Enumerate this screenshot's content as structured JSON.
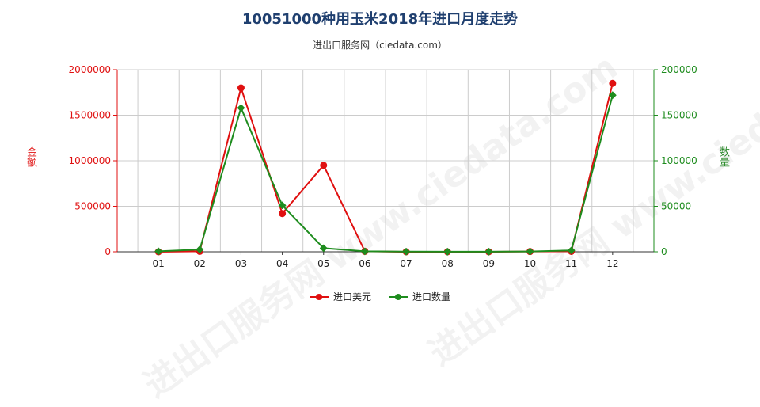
{
  "header": {
    "title": "10051000种用玉米2018年进口月度走势",
    "subtitle": "进出口服务网（ciedata.com）"
  },
  "watermark": {
    "text": "进出口服务网 www.ciedata.com"
  },
  "colors": {
    "left_series": "#e01010",
    "right_series": "#1e8c1e",
    "grid": "#cccccc"
  },
  "chart_data": {
    "type": "line",
    "categories": [
      "01",
      "02",
      "03",
      "04",
      "05",
      "06",
      "07",
      "08",
      "09",
      "10",
      "11",
      "12"
    ],
    "ylabel_left": "金额",
    "ylabel_right": "数量",
    "ylim_left": [
      0,
      2000000
    ],
    "ylim_right": [
      0,
      200000
    ],
    "yticks_left": [
      "0",
      "500000",
      "1000000",
      "1500000",
      "2000000"
    ],
    "yticks_right": [
      "0",
      "50000",
      "100000",
      "150000",
      "200000"
    ],
    "grid": true,
    "legend_position": "bottom",
    "series": [
      {
        "name": "进口美元",
        "axis": "left",
        "values": [
          0,
          5000,
          1800000,
          420000,
          950000,
          5000,
          0,
          0,
          0,
          3000,
          5000,
          1850000
        ]
      },
      {
        "name": "进口数量",
        "axis": "right",
        "values": [
          500,
          2500,
          158000,
          51000,
          4000,
          500,
          200,
          100,
          100,
          300,
          1500,
          172000
        ]
      }
    ]
  }
}
